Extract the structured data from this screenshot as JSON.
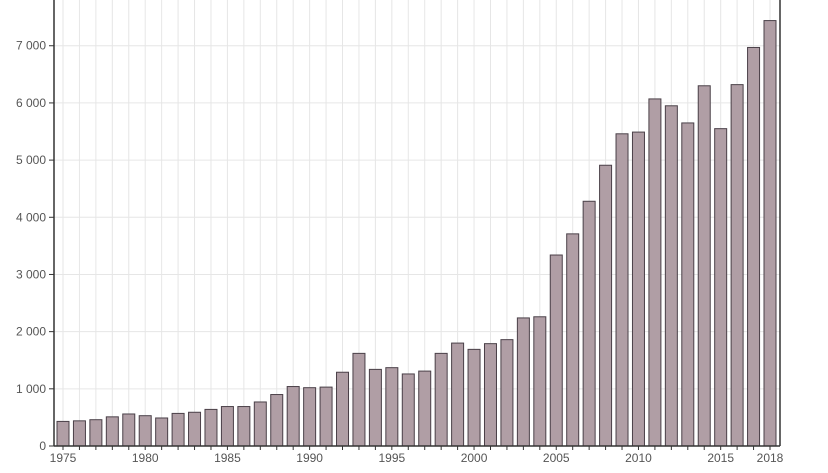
{
  "chart_data": {
    "type": "bar",
    "title": "",
    "xlabel": "",
    "ylabel": "",
    "categories": [
      1975,
      1976,
      1977,
      1978,
      1979,
      1980,
      1981,
      1982,
      1983,
      1984,
      1985,
      1986,
      1987,
      1988,
      1989,
      1990,
      1991,
      1992,
      1993,
      1994,
      1995,
      1996,
      1997,
      1998,
      1999,
      2000,
      2001,
      2002,
      2003,
      2004,
      2005,
      2006,
      2007,
      2008,
      2009,
      2010,
      2011,
      2012,
      2013,
      2014,
      2015,
      2016,
      2017,
      2018
    ],
    "values": [
      430,
      440,
      460,
      510,
      560,
      530,
      490,
      570,
      590,
      640,
      690,
      690,
      770,
      900,
      1040,
      1020,
      1030,
      1290,
      1620,
      1340,
      1370,
      1260,
      1310,
      1620,
      1800,
      1690,
      1790,
      1860,
      2240,
      2260,
      3340,
      3710,
      4280,
      4910,
      5460,
      5490,
      6070,
      5950,
      5650,
      6300,
      5550,
      6320,
      6970,
      7440
    ],
    "ylim": [
      0,
      7800
    ],
    "yticks": [
      0,
      1000,
      2000,
      3000,
      4000,
      5000,
      6000,
      7000
    ],
    "ytick_labels": [
      "0",
      "1 000",
      "2 000",
      "3 000",
      "4 000",
      "5 000",
      "6 000",
      "7 000"
    ],
    "xtick_labels": [
      "1975",
      "1980",
      "1985",
      "1990",
      "1995",
      "2000",
      "2005",
      "2010",
      "2015",
      "2018"
    ],
    "grid": true,
    "legend": "none",
    "colors": {
      "bar_fill": "#b09ea5",
      "bar_stroke": "#4a4048",
      "grid": "#e6e6e6",
      "axis": "#333333"
    }
  }
}
